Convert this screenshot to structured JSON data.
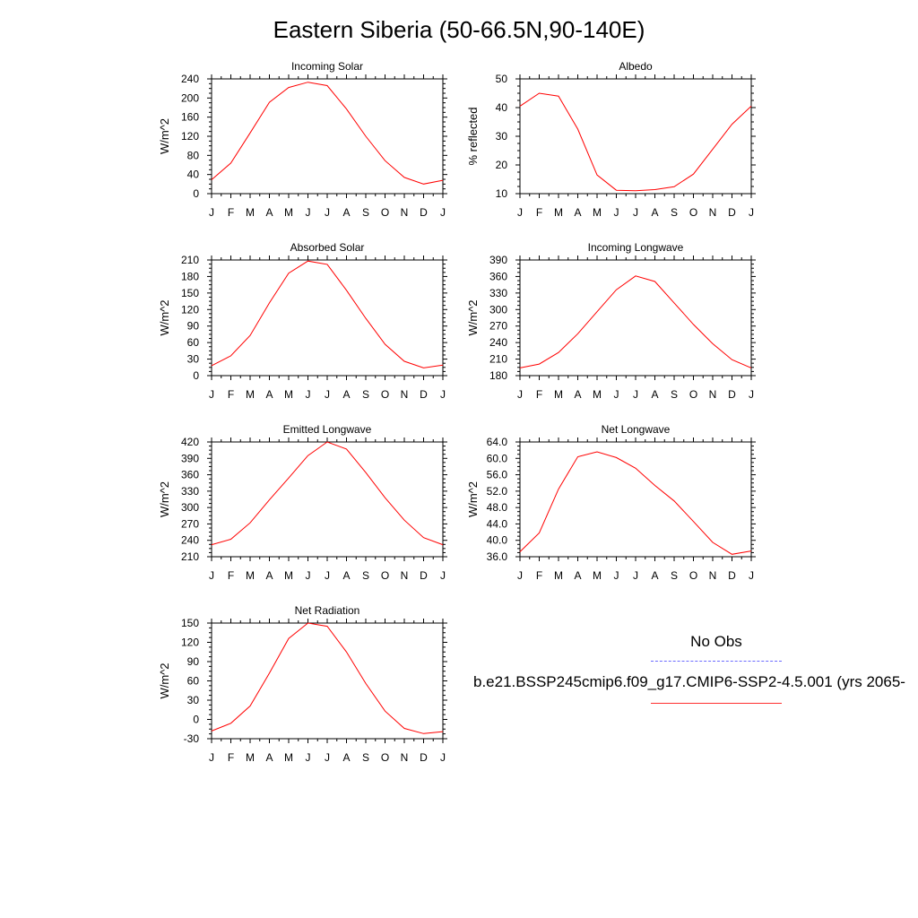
{
  "title": "Eastern Siberia (50-66.5N,90-140E)",
  "colors": {
    "model": "#ff0000",
    "obs": "#6a6aff",
    "axis": "#000000"
  },
  "legend": {
    "obs_label": "No Obs",
    "model_label": "b.e21.BSSP245cmip6.f09_g17.CMIP6-SSP2-4.5.001 (yrs 2065-"
  },
  "chart_data": [
    {
      "type": "line",
      "title": "Incoming Solar",
      "ylabel": "W/m^2",
      "categories": [
        "J",
        "F",
        "M",
        "A",
        "M",
        "J",
        "J",
        "A",
        "S",
        "O",
        "N",
        "D",
        "J"
      ],
      "ylim": [
        0,
        240
      ],
      "yticks": [
        0,
        40,
        80,
        120,
        160,
        200,
        240
      ],
      "ytick_labels": [
        "0",
        "40",
        "80",
        "120",
        "160",
        "200",
        "240"
      ],
      "series": [
        {
          "values": [
            29,
            64,
            127,
            191,
            222,
            233,
            226,
            177,
            120,
            69,
            34,
            20,
            28
          ]
        }
      ]
    },
    {
      "type": "line",
      "title": "Albedo",
      "ylabel": "% reflected",
      "categories": [
        "J",
        "F",
        "M",
        "A",
        "M",
        "J",
        "J",
        "A",
        "S",
        "O",
        "N",
        "D",
        "J"
      ],
      "ylim": [
        10,
        50
      ],
      "yticks": [
        10,
        20,
        30,
        40,
        50
      ],
      "ytick_labels": [
        "10",
        "20",
        "30",
        "40",
        "50"
      ],
      "series": [
        {
          "values": [
            40.5,
            45,
            44,
            32.5,
            16.5,
            11.2,
            11,
            11.4,
            12.4,
            16.8,
            25.5,
            34.2,
            40.5
          ]
        }
      ]
    },
    {
      "type": "line",
      "title": "Absorbed Solar",
      "ylabel": "W/m^2",
      "categories": [
        "J",
        "F",
        "M",
        "A",
        "M",
        "J",
        "J",
        "A",
        "S",
        "O",
        "N",
        "D",
        "J"
      ],
      "ylim": [
        0,
        210
      ],
      "yticks": [
        0,
        30,
        60,
        90,
        120,
        150,
        180,
        210
      ],
      "ytick_labels": [
        "0",
        "30",
        "60",
        "90",
        "120",
        "150",
        "180",
        "210"
      ],
      "series": [
        {
          "values": [
            18,
            36,
            73,
            132,
            186,
            208,
            202,
            155,
            104,
            57,
            26,
            14,
            19
          ]
        }
      ]
    },
    {
      "type": "line",
      "title": "Incoming Longwave",
      "ylabel": "W/m^2",
      "categories": [
        "J",
        "F",
        "M",
        "A",
        "M",
        "J",
        "J",
        "A",
        "S",
        "O",
        "N",
        "D",
        "J"
      ],
      "ylim": [
        180,
        390
      ],
      "yticks": [
        180,
        210,
        240,
        270,
        300,
        330,
        360,
        390
      ],
      "ytick_labels": [
        "180",
        "210",
        "240",
        "270",
        "300",
        "330",
        "360",
        "390"
      ],
      "series": [
        {
          "values": [
            194,
            201,
            222,
            256,
            296,
            336,
            361,
            351,
            312,
            273,
            238,
            209,
            194
          ]
        }
      ]
    },
    {
      "type": "line",
      "title": "Emitted Longwave",
      "ylabel": "W/m^2",
      "categories": [
        "J",
        "F",
        "M",
        "A",
        "M",
        "J",
        "J",
        "A",
        "S",
        "O",
        "N",
        "D",
        "J"
      ],
      "ylim": [
        210,
        420
      ],
      "yticks": [
        210,
        240,
        270,
        300,
        330,
        360,
        390,
        420
      ],
      "ytick_labels": [
        "210",
        "240",
        "270",
        "300",
        "330",
        "360",
        "390",
        "420"
      ],
      "series": [
        {
          "values": [
            232,
            242,
            272,
            314,
            354,
            395,
            420,
            407,
            364,
            318,
            277,
            245,
            232
          ]
        }
      ]
    },
    {
      "type": "line",
      "title": "Net Longwave",
      "ylabel": "W/m^2",
      "categories": [
        "J",
        "F",
        "M",
        "A",
        "M",
        "J",
        "J",
        "A",
        "S",
        "O",
        "N",
        "D",
        "J"
      ],
      "ylim": [
        36,
        64
      ],
      "yticks": [
        36,
        40,
        44,
        48,
        52,
        56,
        60,
        64
      ],
      "ytick_labels": [
        "36.0",
        "40.0",
        "44.0",
        "48.0",
        "52.0",
        "56.0",
        "60.0",
        "64.0"
      ],
      "series": [
        {
          "values": [
            37.2,
            41.8,
            52.5,
            60.4,
            61.6,
            60.2,
            57.6,
            53.4,
            49.6,
            44.6,
            39.5,
            36.6,
            37.4
          ]
        }
      ]
    },
    {
      "type": "line",
      "title": "Net Radiation",
      "ylabel": "W/m^2",
      "categories": [
        "J",
        "F",
        "M",
        "A",
        "M",
        "J",
        "J",
        "A",
        "S",
        "O",
        "N",
        "D",
        "J"
      ],
      "ylim": [
        -30,
        150
      ],
      "yticks": [
        -30,
        0,
        30,
        60,
        90,
        120,
        150
      ],
      "ytick_labels": [
        "-30",
        "0",
        "30",
        "60",
        "90",
        "120",
        "150"
      ],
      "series": [
        {
          "values": [
            -18,
            -6,
            21,
            72,
            126,
            150,
            145,
            105,
            56,
            13,
            -14,
            -22,
            -19
          ]
        }
      ]
    }
  ]
}
